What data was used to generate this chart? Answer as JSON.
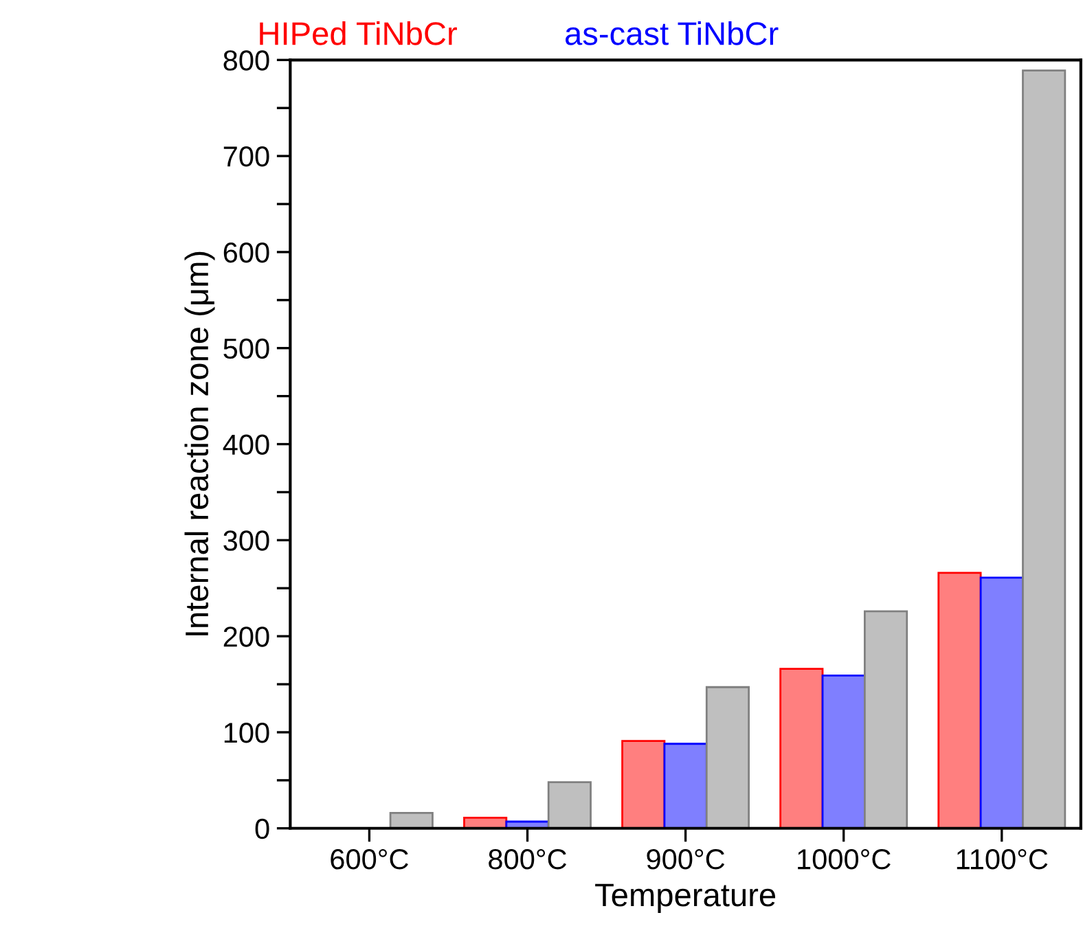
{
  "chart_data": {
    "type": "bar",
    "xlabel": "Temperature",
    "ylabel": "Internal reaction zone (μm)",
    "categories": [
      "600°C",
      "800°C",
      "900°C",
      "1000°C",
      "1100°C"
    ],
    "series": [
      {
        "name": "HIPed TiNbCr",
        "color": "#ff7f7f",
        "values": [
          null,
          11,
          91,
          166,
          266
        ]
      },
      {
        "name": "as-cast TiNbCr",
        "color": "#7f7fff",
        "values": [
          null,
          7,
          88,
          159,
          261
        ]
      },
      {
        "color": "#bfbfbf",
        "values": [
          16,
          48,
          147,
          226,
          789
        ]
      }
    ],
    "ylim": [
      0,
      800
    ],
    "yticks": [
      0,
      {
        "value": 50,
        "label": null
      },
      100,
      {
        "value": 150,
        "label": null
      },
      200,
      {
        "value": 250,
        "label": null
      },
      300,
      {
        "value": 350,
        "label": null
      },
      400,
      {
        "value": 450,
        "label": null
      },
      500,
      {
        "value": 550,
        "label": null
      },
      600,
      {
        "value": 650,
        "label": null
      },
      700,
      {
        "value": 750,
        "label": null
      },
      800
    ],
    "grid": false,
    "legend": "top"
  }
}
